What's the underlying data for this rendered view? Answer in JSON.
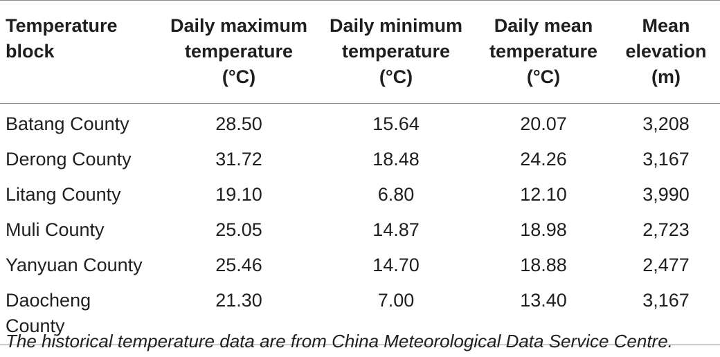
{
  "table": {
    "headers": [
      [
        "Temperature",
        "block"
      ],
      [
        "Daily maximum",
        "temperature",
        "(°C)"
      ],
      [
        "Daily minimum",
        "temperature",
        "(°C)"
      ],
      [
        "Daily mean",
        "temperature",
        "(°C)"
      ],
      [
        "Mean",
        "elevation",
        "(m)"
      ]
    ],
    "rows": [
      [
        "Batang County",
        "28.50",
        "15.64",
        "20.07",
        "3,208"
      ],
      [
        "Derong County",
        "31.72",
        "18.48",
        "24.26",
        "3,167"
      ],
      [
        "Litang County",
        "19.10",
        "6.80",
        "12.10",
        "3,990"
      ],
      [
        "Muli County",
        "25.05",
        "14.87",
        "18.98",
        "2,723"
      ],
      [
        "Yanyuan County",
        "25.46",
        "14.70",
        "18.88",
        "2,477"
      ],
      [
        "Daocheng County",
        "21.30",
        "7.00",
        "13.40",
        "3,167"
      ]
    ]
  },
  "footnote": "The historical temperature data are from China Meteorological Data Service Centre."
}
